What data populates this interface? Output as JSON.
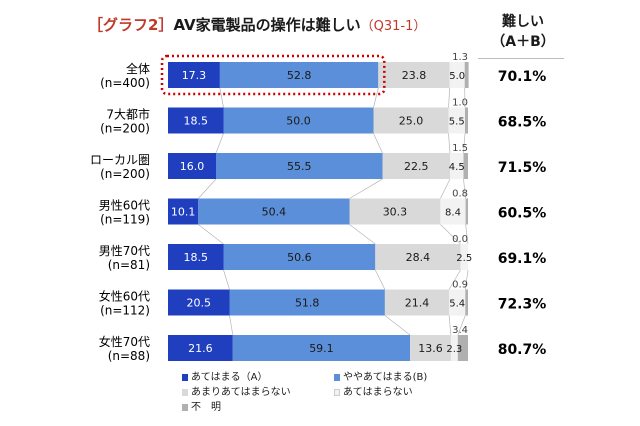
{
  "title": {
    "tag": "［グラフ2］",
    "main": "AV家電製品の操作は難しい",
    "question": "（Q31-1）"
  },
  "summary_header": [
    "難しい",
    "（A＋B）"
  ],
  "colors": {
    "a": "#1f3fbf",
    "b": "#5b8fd9",
    "c": "#d9d9d9",
    "d": "#f2f2f2",
    "e": "#b0b0b0",
    "highlight": "#cc0000"
  },
  "chart_data": {
    "type": "bar",
    "orientation": "horizontal",
    "stacked": true,
    "xlim": [
      0,
      100
    ],
    "categories": [
      {
        "name": "全体",
        "n": "(n=400)"
      },
      {
        "name": "7大都市",
        "n": "(n=200)"
      },
      {
        "name": "ローカル圏",
        "n": "(n=200)"
      },
      {
        "name": "男性60代",
        "n": "(n=119)"
      },
      {
        "name": "男性70代",
        "n": "(n=81)"
      },
      {
        "name": "女性60代",
        "n": "(n=112)"
      },
      {
        "name": "女性70代",
        "n": "(n=88)"
      }
    ],
    "series": [
      {
        "name": "あてはまる（A）",
        "values": [
          17.3,
          18.5,
          16.0,
          10.1,
          18.5,
          20.5,
          21.6
        ]
      },
      {
        "name": "ややあてはまる(B)",
        "values": [
          52.8,
          50.0,
          55.5,
          50.4,
          50.6,
          51.8,
          59.1
        ]
      },
      {
        "name": "あまりあてはまらない",
        "values": [
          23.8,
          25.0,
          22.5,
          30.3,
          28.4,
          21.4,
          13.6
        ]
      },
      {
        "name": "あてはまらない",
        "values": [
          5.0,
          5.5,
          4.5,
          8.4,
          2.5,
          5.4,
          2.3
        ]
      },
      {
        "name": "不　明",
        "values": [
          1.3,
          1.0,
          1.5,
          0.8,
          0.0,
          0.9,
          3.4
        ]
      }
    ],
    "labels": [
      [
        "17.3",
        "52.8",
        "23.8",
        "5.0",
        "1.3"
      ],
      [
        "18.5",
        "50.0",
        "25.0",
        "5.5",
        "1.0"
      ],
      [
        "16.0",
        "55.5",
        "22.5",
        "4.5",
        "1.5"
      ],
      [
        "10.1",
        "50.4",
        "30.3",
        "8.4",
        "0.8"
      ],
      [
        "18.5",
        "50.6",
        "28.4",
        "2.5",
        "0.0"
      ],
      [
        "20.5",
        "51.8",
        "21.4",
        "5.4",
        "0.9"
      ],
      [
        "21.6",
        "59.1",
        "13.6",
        "2.3",
        "3.4"
      ]
    ],
    "summary": [
      "70.1%",
      "68.5%",
      "71.5%",
      "60.5%",
      "69.1%",
      "72.3%",
      "80.7%"
    ],
    "highlighted_row": 0,
    "legend": [
      "あてはまる（A）",
      "ややあてはまる(B)",
      "あまりあてはまらない",
      "あてはまらない",
      "不　明"
    ]
  }
}
